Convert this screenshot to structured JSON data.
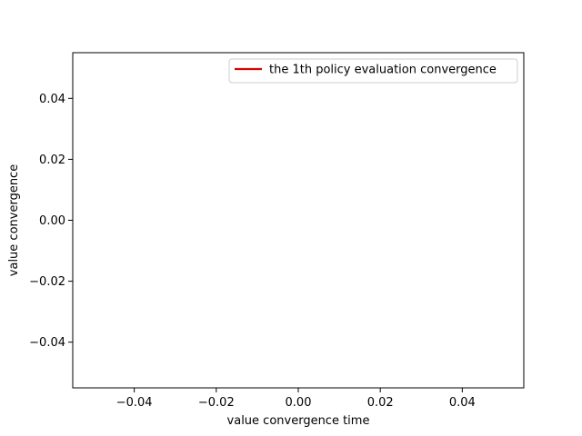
{
  "chart_data": {
    "type": "line",
    "title": "",
    "xlabel": "value convergence time",
    "ylabel": "value convergence",
    "xlim": [
      -0.055,
      0.055
    ],
    "ylim": [
      -0.055,
      0.055
    ],
    "xticks": [
      -0.04,
      -0.02,
      0.0,
      0.02,
      0.04
    ],
    "xtick_labels": [
      "−0.04",
      "−0.02",
      "0.00",
      "0.02",
      "0.04"
    ],
    "yticks": [
      -0.04,
      -0.02,
      0.0,
      0.02,
      0.04
    ],
    "ytick_labels": [
      "−0.04",
      "−0.02",
      "0.00",
      "0.02",
      "0.04"
    ],
    "grid": false,
    "legend_position": "upper-right",
    "series": [
      {
        "name": "the 1th policy evaluation convergence",
        "color": "#e00000",
        "x": [],
        "y": []
      }
    ]
  }
}
